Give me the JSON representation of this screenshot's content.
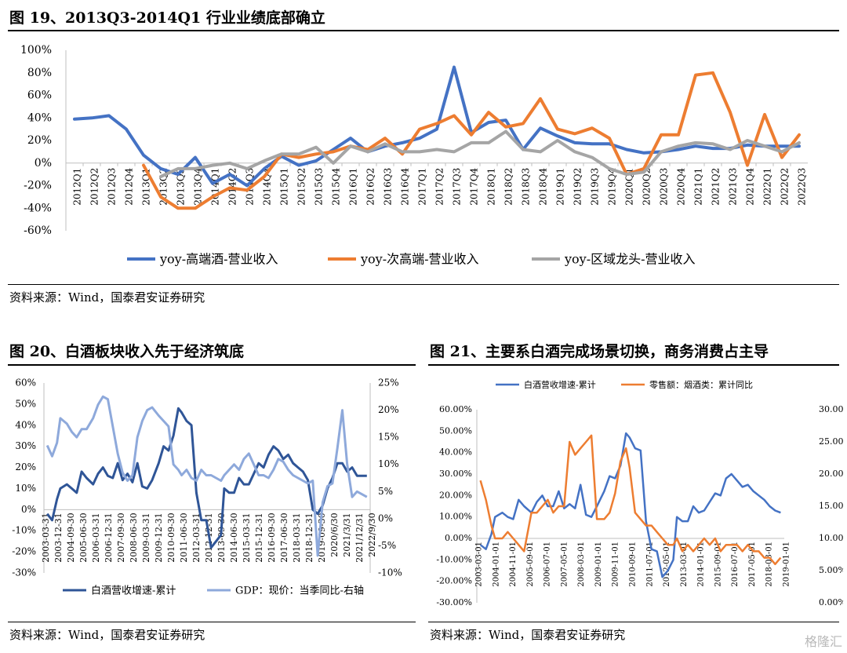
{
  "fig19": {
    "title": "图 19、2013Q3-2014Q1 行业业绩底部确立",
    "source": "资料来源：Wind，国泰君安证券研究"
  },
  "fig20": {
    "title": "图 20、白酒板块收入先于经济筑底",
    "source": "资料来源：Wind，国泰君安证券研究"
  },
  "fig21": {
    "title": "图 21、主要系白酒完成场景切换，商务消费占主导",
    "source": "资料来源：Wind，国泰君安证券研究"
  },
  "watermark": "格隆汇",
  "chart_data": [
    {
      "type": "line",
      "ylim": [
        -60,
        100
      ],
      "yticks": [
        "100%",
        "80%",
        "60%",
        "40%",
        "20%",
        "0%",
        "-20%",
        "-40%",
        "-60%"
      ],
      "categories": [
        "2012Q1",
        "2012Q2",
        "2012Q3",
        "2012Q4",
        "2013Q1",
        "2013Q2",
        "2013Q3",
        "2013Q4",
        "2014Q1",
        "2014Q2",
        "2014Q3",
        "2014Q4",
        "2015Q1",
        "2015Q2",
        "2015Q3",
        "2015Q4",
        "2016Q1",
        "2016Q2",
        "2016Q3",
        "2016Q4",
        "2017Q1",
        "2017Q2",
        "2017Q3",
        "2017Q4",
        "2018Q1",
        "2018Q2",
        "2018Q3",
        "2018Q4",
        "2019Q1",
        "2019Q2",
        "2019Q3",
        "2019Q4",
        "2020Q1",
        "2020Q2",
        "2020Q3",
        "2020Q4",
        "2021Q1",
        "2021Q2",
        "2021Q3",
        "2021Q4",
        "2022Q1",
        "2022Q2",
        "2022Q3"
      ],
      "tick_categories": [
        "2012Q1",
        "2012Q2",
        "2012Q3",
        "2012Q4",
        "2013Q1",
        "2013Q2",
        "2013Q3",
        "2013Q4",
        "2014Q1",
        "2014Q2",
        "2014Q3",
        "2014Q4",
        "2015Q1",
        "2015Q2",
        "2015Q3",
        "2015Q4",
        "2016Q1",
        "2016Q2",
        "2016Q3",
        "2016Q4",
        "2017Q1",
        "2017Q2",
        "2017Q3",
        "2017Q4",
        "2018Q1",
        "2018Q2",
        "2018Q3",
        "2018Q4",
        "2019Q1",
        "2019Q2",
        "2019Q3",
        "2019Q4",
        "2020Q1",
        "2020Q2",
        "2020Q3",
        "2020Q4",
        "2021Q1",
        "2021Q2",
        "2021Q3",
        "2021Q4",
        "2022Q1",
        "2022Q2",
        "2022Q3"
      ],
      "series": [
        {
          "name": "yoy-高端酒-营业收入",
          "color": "#4472C4",
          "values": [
            39,
            40,
            42,
            30,
            7,
            -5,
            -10,
            5,
            -18,
            -10,
            -20,
            -5,
            6,
            -2,
            2,
            12,
            22,
            10,
            15,
            18,
            22,
            30,
            85,
            27,
            36,
            38,
            12,
            31,
            24,
            18,
            17,
            17,
            12,
            9,
            10,
            12,
            15,
            13,
            13,
            16,
            15,
            15,
            15
          ]
        },
        {
          "name": "yoy-次高端-营业收入",
          "color": "#ED7D31",
          "values": [
            null,
            null,
            null,
            null,
            -2,
            -30,
            -40,
            -40,
            -30,
            -22,
            -24,
            -12,
            8,
            5,
            8,
            10,
            15,
            12,
            22,
            8,
            30,
            35,
            42,
            25,
            45,
            32,
            35,
            57,
            30,
            26,
            31,
            22,
            -10,
            -5,
            25,
            25,
            78,
            80,
            45,
            -2,
            43,
            5,
            25
          ]
        },
        {
          "name": "yoy-区域龙头-营业收入",
          "color": "#A5A5A5",
          "values": [
            null,
            null,
            null,
            null,
            null,
            -12,
            -5,
            -5,
            -2,
            0,
            -5,
            2,
            8,
            8,
            14,
            0,
            15,
            10,
            17,
            10,
            10,
            12,
            10,
            18,
            18,
            28,
            12,
            10,
            20,
            10,
            5,
            -5,
            -10,
            -8,
            10,
            15,
            18,
            17,
            12,
            20,
            15,
            10,
            18
          ]
        }
      ]
    },
    {
      "type": "line",
      "ylim": [
        -30,
        60
      ],
      "y2lim": [
        -10,
        25
      ],
      "yticks": [
        "60%",
        "50%",
        "40%",
        "30%",
        "20%",
        "10%",
        "0%",
        "-10%",
        "-20%",
        "-30%"
      ],
      "y2ticks": [
        "25%",
        "20%",
        "15%",
        "10%",
        "5%",
        "0%",
        "-5%",
        "-10%"
      ],
      "tick_labels": [
        "2003-03-31",
        "2003-12-31",
        "2004-09-30",
        "2005-06-30",
        "2006-03-31",
        "2006-12-31",
        "2007-09-30",
        "2008-06-30",
        "2009-03-31",
        "2009-12-31",
        "2010-09-30",
        "2011-06-30",
        "2012-03-31",
        "2012-12-31",
        "2013-09-30",
        "2014-06-30",
        "2015-03-31",
        "2015-12-31",
        "2016-09-30",
        "2017-06-30",
        "2018-03-31",
        "2018-12-31",
        "2019-09-30",
        "2020/6/30",
        "2021/3/31",
        "2021/12/31",
        "2022/9/30"
      ],
      "x": [
        2003.2,
        2003.5,
        2003.8,
        2004.0,
        2004.4,
        2004.7,
        2005.0,
        2005.3,
        2005.6,
        2006.0,
        2006.3,
        2006.6,
        2006.9,
        2007.2,
        2007.5,
        2007.8,
        2008.1,
        2008.4,
        2008.7,
        2009.0,
        2009.3,
        2009.6,
        2010.0,
        2010.3,
        2010.6,
        2010.9,
        2011.2,
        2011.4,
        2011.7,
        2012.0,
        2012.3,
        2012.6,
        2012.9,
        2013.2,
        2013.5,
        2013.8,
        2014.0,
        2014.3,
        2014.6,
        2014.9,
        2015.2,
        2015.5,
        2015.8,
        2016.1,
        2016.4,
        2016.7,
        2017.0,
        2017.3,
        2017.6,
        2017.9,
        2018.2,
        2018.5,
        2018.8,
        2019.1,
        2019.4,
        2019.7,
        2020.0,
        2020.3,
        2020.6,
        2020.9,
        2021.2,
        2021.5,
        2021.8,
        2022.1,
        2022.4,
        2022.7
      ],
      "series": [
        {
          "name": "白酒营收增速-累计",
          "axis": "left",
          "color": "#2F5597",
          "values": [
            -2,
            -5,
            5,
            10,
            12,
            10,
            8,
            18,
            15,
            12,
            17,
            20,
            16,
            15,
            22,
            14,
            17,
            13,
            22,
            11,
            10,
            14,
            22,
            30,
            28,
            35,
            48,
            46,
            42,
            40,
            8,
            -5,
            -5,
            -18,
            -15,
            -12,
            10,
            8,
            8,
            15,
            12,
            12,
            17,
            22,
            20,
            26,
            30,
            28,
            24,
            26,
            22,
            20,
            18,
            14,
            0,
            -2,
            2,
            10,
            15,
            22,
            22,
            18,
            20,
            16,
            16,
            16
          ]
        },
        {
          "name": "GDP：现价：当季同比-右轴",
          "axis": "right",
          "color": "#8EA9DB",
          "values": [
            13.5,
            11.5,
            14,
            18.5,
            17.5,
            16,
            15,
            16.5,
            16.5,
            18.5,
            21,
            22.5,
            22,
            17,
            12,
            8.5,
            7,
            8,
            15,
            18,
            20,
            20.5,
            19,
            18,
            17,
            10,
            9,
            8,
            9,
            7.5,
            7,
            9,
            8,
            8,
            7.5,
            7,
            8,
            9,
            10,
            9,
            11,
            12,
            10,
            8,
            8,
            7.5,
            9,
            11,
            10.5,
            9,
            8,
            7.5,
            7,
            6.5,
            7,
            -6.8,
            3,
            6,
            6.5,
            13,
            20,
            10,
            4,
            5,
            4.5,
            4
          ]
        }
      ]
    },
    {
      "type": "line",
      "ylim": [
        -30,
        60
      ],
      "y2lim": [
        0,
        30
      ],
      "yticks": [
        "60.00%",
        "50.00%",
        "40.00%",
        "30.00%",
        "20.00%",
        "10.00%",
        "0.00%",
        "-10.00%",
        "-20.00%",
        "-30.00%"
      ],
      "y2ticks": [
        "30.00%",
        "25.00%",
        "20.00%",
        "15.00%",
        "10.00%",
        "5.00%",
        "0.00%"
      ],
      "tick_labels": [
        "2003-03-01",
        "2004-01-01",
        "2004-11-01",
        "2005-09-01",
        "2006-07-01",
        "2007-05-01",
        "2008-03-01",
        "2009-01-01",
        "2009-11-01",
        "2010-09-01",
        "2011-07-01",
        "2012-05-01",
        "2013-03-01",
        "2014-01-01",
        "2015-09-01",
        "2016-07-01",
        "2017-05-01",
        "2018-03-01",
        "2019-01-01"
      ],
      "x": [
        2003.2,
        2003.5,
        2003.8,
        2004.0,
        2004.4,
        2004.7,
        2005.0,
        2005.3,
        2005.6,
        2006.0,
        2006.3,
        2006.6,
        2006.9,
        2007.2,
        2007.5,
        2007.8,
        2008.1,
        2008.4,
        2008.7,
        2009.0,
        2009.3,
        2009.6,
        2010.0,
        2010.3,
        2010.6,
        2010.9,
        2011.2,
        2011.4,
        2011.7,
        2012.0,
        2012.3,
        2012.6,
        2012.9,
        2013.2,
        2013.5,
        2013.8,
        2014.0,
        2014.3,
        2014.6,
        2014.9,
        2015.2,
        2015.5,
        2015.8,
        2016.1,
        2016.4,
        2016.7,
        2017.0,
        2017.3,
        2017.6,
        2017.9,
        2018.2,
        2018.5,
        2018.8,
        2019.1,
        2019.4,
        2019.7
      ],
      "series": [
        {
          "name": "白酒营收增速-累计",
          "axis": "left",
          "color": "#4472C4",
          "values": [
            -3,
            -5,
            2,
            10,
            12,
            10,
            9,
            18,
            15,
            12,
            17,
            20,
            15,
            15,
            22,
            14,
            16,
            14,
            25,
            11,
            10,
            15,
            22,
            29,
            28,
            34,
            49,
            47,
            42,
            41,
            8,
            -5,
            -6,
            -18,
            -15,
            -10,
            10,
            8,
            8,
            15,
            12,
            13,
            17,
            21,
            20,
            28,
            30,
            27,
            24,
            25,
            22,
            20,
            18,
            15,
            13,
            12
          ]
        },
        {
          "name": "零售额：烟酒类：累计同比",
          "axis": "right",
          "color": "#ED7D31",
          "values": [
            19,
            16,
            12,
            10,
            10,
            11,
            10,
            9,
            8,
            14,
            14,
            15,
            16,
            14,
            15,
            15,
            25,
            23,
            24,
            25,
            26,
            13,
            13,
            14,
            17,
            22,
            24,
            21,
            14,
            13,
            12,
            12,
            11,
            10,
            9,
            9,
            10,
            8,
            9,
            8,
            9,
            10,
            9,
            10,
            8,
            9,
            9,
            9,
            8,
            9,
            8,
            8,
            7,
            7,
            6,
            7
          ]
        }
      ]
    }
  ]
}
